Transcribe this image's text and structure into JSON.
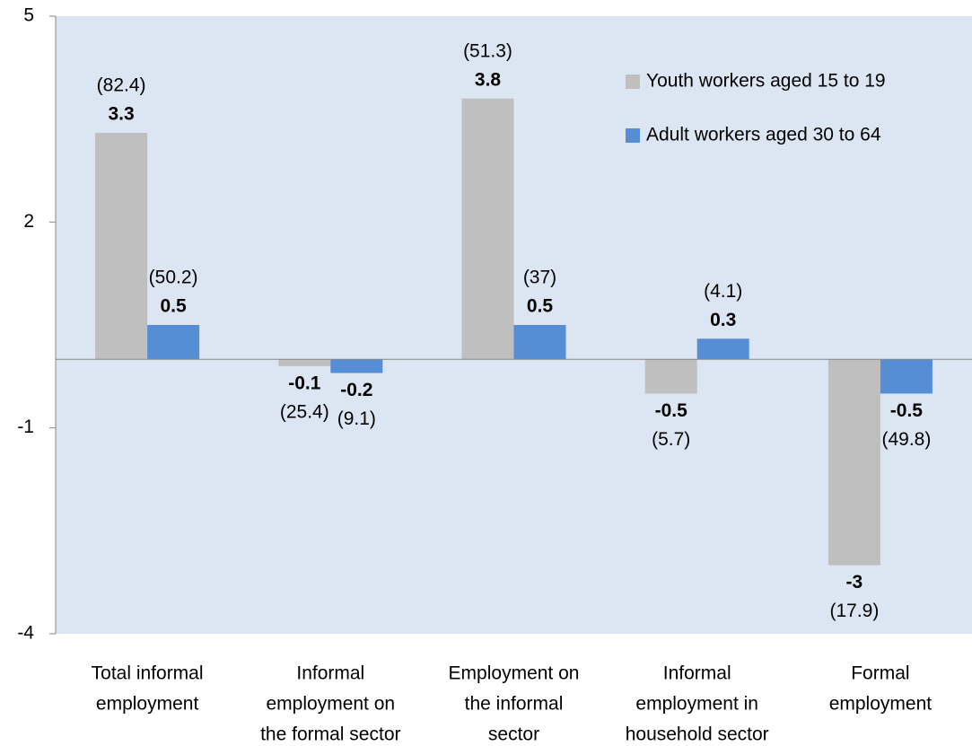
{
  "chart_data": {
    "type": "bar",
    "categories": [
      [
        "Total informal",
        "employment"
      ],
      [
        "Informal",
        "employment on",
        "the formal sector"
      ],
      [
        "Employment on",
        "the informal",
        "sector"
      ],
      [
        "Informal",
        "employment in",
        "household sector"
      ],
      [
        "Formal",
        "employment"
      ]
    ],
    "series": [
      {
        "name": "Youth workers aged 15 to 19",
        "color": "#bfbfbf",
        "values": [
          3.3,
          -0.1,
          3.8,
          -0.5,
          -3
        ],
        "notes": [
          "(82.4)",
          "(25.4)",
          "(51.3)",
          "(5.7)",
          "(17.9)"
        ]
      },
      {
        "name": "Adult workers aged 30 to 64",
        "color": "#558ed5",
        "values": [
          0.5,
          -0.2,
          0.5,
          0.3,
          -0.5
        ],
        "notes": [
          "(50.2)",
          "(9.1)",
          "(37)",
          "(4.1)",
          "(49.8)"
        ]
      }
    ],
    "ylim": [
      -4,
      5
    ],
    "yticks": [
      -4,
      -1,
      2,
      5
    ],
    "legend": "top-right",
    "background": "#dce6f2"
  }
}
